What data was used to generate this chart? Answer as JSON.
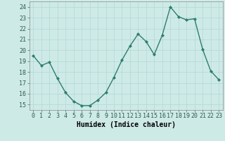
{
  "x": [
    0,
    1,
    2,
    3,
    4,
    5,
    6,
    7,
    8,
    9,
    10,
    11,
    12,
    13,
    14,
    15,
    16,
    17,
    18,
    19,
    20,
    21,
    22,
    23
  ],
  "y": [
    19.5,
    18.6,
    18.9,
    17.4,
    16.1,
    15.3,
    14.9,
    14.9,
    15.4,
    16.1,
    17.5,
    19.1,
    20.4,
    21.5,
    20.8,
    19.6,
    21.4,
    24.0,
    23.1,
    22.8,
    22.9,
    20.1,
    18.1,
    17.3
  ],
  "line_color": "#2e7d6e",
  "marker": "D",
  "markersize": 2.0,
  "linewidth": 1.0,
  "bg_color": "#ceeae7",
  "grid_color": "#b0d8d4",
  "xlabel": "Humidex (Indice chaleur)",
  "xlabel_fontsize": 7,
  "tick_fontsize": 6,
  "ylim": [
    14.5,
    24.5
  ],
  "yticks": [
    15,
    16,
    17,
    18,
    19,
    20,
    21,
    22,
    23,
    24
  ],
  "xticks": [
    0,
    1,
    2,
    3,
    4,
    5,
    6,
    7,
    8,
    9,
    10,
    11,
    12,
    13,
    14,
    15,
    16,
    17,
    18,
    19,
    20,
    21,
    22,
    23
  ]
}
